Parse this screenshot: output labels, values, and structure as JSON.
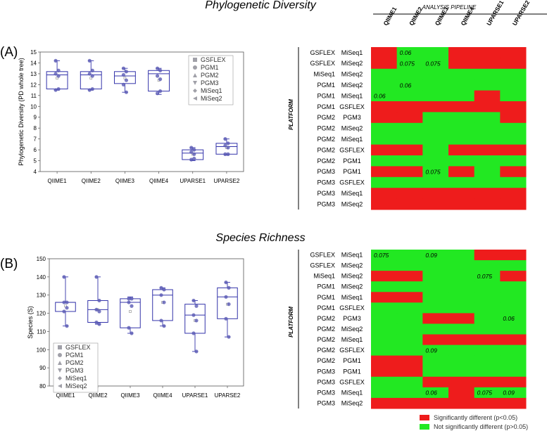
{
  "titles": {
    "top": "Phylogenetic Diversity",
    "bottom": "Species Richness"
  },
  "panel_labels": {
    "a": "(A)",
    "b": "(B)"
  },
  "heatmap_labels": {
    "pipeline": "ANALYSIS PIPELINE",
    "platform": "PLATFORM"
  },
  "legend_bottom": {
    "sig": "Significantly different (p<0.05)",
    "nonsig": "Not significantly different (p>0.05)",
    "sig_color": "#ee1c1c",
    "nonsig_color": "#22e822"
  },
  "chart_data": [
    {
      "type": "box",
      "title": "Phylogenetic Diversity",
      "ylabel": "Phylogenetic Diversity (PD whole tree)",
      "ylim": [
        4,
        15
      ],
      "yticks": [
        4,
        5,
        6,
        7,
        8,
        9,
        10,
        11,
        12,
        13,
        14,
        15
      ],
      "categories": [
        "QIIME1",
        "QIIME2",
        "QIIME3",
        "QIIME4",
        "UPARSE1",
        "UPARSE2"
      ],
      "boxes": [
        {
          "q1": 11.6,
          "median": 12.9,
          "q3": 13.2,
          "whislo": 11.5,
          "whishi": 14.2,
          "mean": 12.6,
          "points": [
            14.2,
            13.3,
            13.0,
            12.8,
            11.5,
            11.6
          ]
        },
        {
          "q1": 11.6,
          "median": 12.9,
          "q3": 13.2,
          "whislo": 11.5,
          "whishi": 14.2,
          "mean": 12.6,
          "points": [
            14.2,
            13.3,
            13.0,
            12.8,
            11.5,
            11.6
          ]
        },
        {
          "q1": 12.1,
          "median": 12.8,
          "q3": 13.2,
          "whislo": 11.3,
          "whishi": 13.5,
          "mean": 12.6,
          "points": [
            13.5,
            13.2,
            12.9,
            12.4,
            12.0,
            11.3
          ]
        },
        {
          "q1": 11.4,
          "median": 13.0,
          "q3": 13.3,
          "whislo": 11.1,
          "whishi": 13.5,
          "mean": 12.4,
          "points": [
            13.5,
            13.3,
            12.8,
            12.5,
            11.2,
            11.4
          ]
        },
        {
          "q1": 5.1,
          "median": 5.7,
          "q3": 6.0,
          "whislo": 5.0,
          "whishi": 6.2,
          "mean": 5.6,
          "points": [
            6.2,
            6.0,
            5.8,
            5.6,
            5.1,
            5.2
          ]
        },
        {
          "q1": 5.6,
          "median": 6.3,
          "q3": 6.6,
          "whislo": 5.5,
          "whishi": 7.0,
          "mean": 6.2,
          "points": [
            7.0,
            6.6,
            6.4,
            6.2,
            5.6,
            5.6
          ]
        }
      ],
      "legend": [
        "GSFLEX",
        "PGM1",
        "PGM2",
        "PGM3",
        "MiSeq1",
        "MiSeq2"
      ]
    },
    {
      "type": "box",
      "title": "Species Richness",
      "ylabel": "Species (S)",
      "ylim": [
        80,
        150
      ],
      "yticks": [
        80,
        90,
        100,
        110,
        120,
        130,
        140,
        150
      ],
      "categories": [
        "QIIME1",
        "QIIME2",
        "QIIME3",
        "QIIME4",
        "UPARSE1",
        "UPARSE2"
      ],
      "boxes": [
        {
          "q1": 121,
          "median": 126,
          "q3": 126,
          "whislo": 113,
          "whishi": 140,
          "mean": 124,
          "points": [
            140,
            126,
            126,
            123,
            121,
            113
          ]
        },
        {
          "q1": 115,
          "median": 122,
          "q3": 127,
          "whislo": 114,
          "whishi": 140,
          "mean": 122,
          "points": [
            140,
            127,
            122,
            121,
            115,
            114
          ]
        },
        {
          "q1": 112,
          "median": 126,
          "q3": 128,
          "whislo": 109,
          "whishi": 129,
          "mean": 121,
          "points": [
            128,
            128,
            126,
            124,
            112,
            109
          ]
        },
        {
          "q1": 116,
          "median": 130,
          "q3": 133,
          "whislo": 113,
          "whishi": 134,
          "mean": 126,
          "points": [
            134,
            133,
            130,
            126,
            116,
            113
          ]
        },
        {
          "q1": 109,
          "median": 119,
          "q3": 125,
          "whislo": 99,
          "whishi": 127,
          "mean": 116,
          "points": [
            127,
            124,
            119,
            116,
            109,
            99
          ]
        },
        {
          "q1": 117,
          "median": 129,
          "q3": 134,
          "whislo": 107,
          "whishi": 137,
          "mean": 125,
          "points": [
            137,
            134,
            129,
            125,
            117,
            107
          ]
        }
      ],
      "legend": [
        "GSFLEX",
        "PGM1",
        "PGM2",
        "PGM3",
        "MiSeq1",
        "MiSeq2"
      ]
    },
    {
      "type": "heatmap",
      "title": "Phylogenetic Diversity",
      "columns": [
        "QIIME1",
        "QIIME2",
        "QIIME3",
        "QIIME4",
        "UPARSE1",
        "UPARSE2"
      ],
      "rows": [
        [
          "GSFLEX",
          "MiSeq1"
        ],
        [
          "GSFLEX",
          "MiSeq2"
        ],
        [
          "MiSeq1",
          "MiSeq2"
        ],
        [
          "PGM1",
          "MiSeq2"
        ],
        [
          "PGM1",
          "MiSeq1"
        ],
        [
          "PGM1",
          "GSFLEX"
        ],
        [
          "PGM2",
          "PGM3"
        ],
        [
          "PGM2",
          "MiSeq2"
        ],
        [
          "PGM2",
          "MiSeq1"
        ],
        [
          "PGM2",
          "GSFLEX"
        ],
        [
          "PGM2",
          "PGM1"
        ],
        [
          "PGM3",
          "PGM1"
        ],
        [
          "PGM3",
          "GSFLEX"
        ],
        [
          "PGM3",
          "MiSeq1"
        ],
        [
          "PGM3",
          "MiSeq2"
        ]
      ],
      "significant": [
        [
          1,
          0,
          0,
          1,
          1,
          1
        ],
        [
          1,
          0,
          0,
          1,
          1,
          1
        ],
        [
          0,
          0,
          0,
          0,
          0,
          0
        ],
        [
          0,
          0,
          0,
          0,
          0,
          0
        ],
        [
          0,
          0,
          0,
          0,
          1,
          0
        ],
        [
          1,
          1,
          1,
          1,
          1,
          1
        ],
        [
          1,
          1,
          0,
          0,
          0,
          1
        ],
        [
          0,
          0,
          0,
          0,
          0,
          0
        ],
        [
          0,
          0,
          0,
          0,
          0,
          0
        ],
        [
          1,
          1,
          0,
          1,
          1,
          1
        ],
        [
          0,
          0,
          0,
          0,
          0,
          0
        ],
        [
          1,
          1,
          0,
          1,
          0,
          1
        ],
        [
          0,
          0,
          0,
          0,
          0,
          0
        ],
        [
          1,
          1,
          1,
          1,
          1,
          1
        ],
        [
          1,
          1,
          1,
          1,
          1,
          1
        ]
      ],
      "annotations": [
        {
          "row": 0,
          "col": 1,
          "text": "0.06"
        },
        {
          "row": 1,
          "col": 1,
          "text": "0.075"
        },
        {
          "row": 1,
          "col": 2,
          "text": "0.075"
        },
        {
          "row": 3,
          "col": 1,
          "text": "0.06"
        },
        {
          "row": 4,
          "col": 0,
          "text": "0.06"
        },
        {
          "row": 11,
          "col": 2,
          "text": "0.075"
        }
      ]
    },
    {
      "type": "heatmap",
      "title": "Species Richness",
      "columns": [
        "QIIME1",
        "QIIME2",
        "QIIME3",
        "QIIME4",
        "UPARSE1",
        "UPARSE2"
      ],
      "rows": [
        [
          "GSFLEX",
          "MiSeq1"
        ],
        [
          "GSFLEX",
          "MiSeq2"
        ],
        [
          "MiSeq1",
          "MiSeq2"
        ],
        [
          "PGM1",
          "MiSeq2"
        ],
        [
          "PGM1",
          "MiSeq1"
        ],
        [
          "PGM1",
          "GSFLEX"
        ],
        [
          "PGM2",
          "PGM3"
        ],
        [
          "PGM2",
          "MiSeq2"
        ],
        [
          "PGM2",
          "MiSeq1"
        ],
        [
          "PGM2",
          "GSFLEX"
        ],
        [
          "PGM2",
          "PGM1"
        ],
        [
          "PGM3",
          "PGM1"
        ],
        [
          "PGM3",
          "GSFLEX"
        ],
        [
          "PGM3",
          "MiSeq1"
        ],
        [
          "PGM3",
          "MiSeq2"
        ]
      ],
      "significant": [
        [
          0,
          0,
          0,
          0,
          1,
          1
        ],
        [
          0,
          0,
          0,
          0,
          0,
          0
        ],
        [
          1,
          1,
          0,
          0,
          0,
          1
        ],
        [
          0,
          0,
          0,
          0,
          0,
          0
        ],
        [
          1,
          1,
          0,
          0,
          0,
          0
        ],
        [
          0,
          0,
          0,
          0,
          0,
          0
        ],
        [
          0,
          0,
          1,
          1,
          0,
          0
        ],
        [
          0,
          0,
          0,
          0,
          0,
          0
        ],
        [
          0,
          0,
          1,
          1,
          1,
          1
        ],
        [
          0,
          0,
          0,
          0,
          0,
          0
        ],
        [
          1,
          1,
          0,
          0,
          0,
          0
        ],
        [
          1,
          1,
          0,
          0,
          0,
          0
        ],
        [
          0,
          0,
          1,
          1,
          1,
          1
        ],
        [
          0,
          0,
          0,
          1,
          0,
          0
        ],
        [
          1,
          1,
          1,
          1,
          1,
          1
        ]
      ],
      "annotations": [
        {
          "row": 0,
          "col": 0,
          "text": "0.075"
        },
        {
          "row": 0,
          "col": 2,
          "text": "0.09"
        },
        {
          "row": 2,
          "col": 4,
          "text": "0.075"
        },
        {
          "row": 6,
          "col": 5,
          "text": "0.06"
        },
        {
          "row": 9,
          "col": 2,
          "text": "0.09"
        },
        {
          "row": 13,
          "col": 2,
          "text": "0.06"
        },
        {
          "row": 13,
          "col": 4,
          "text": "0.075"
        },
        {
          "row": 13,
          "col": 5,
          "text": "0.09"
        }
      ]
    }
  ]
}
